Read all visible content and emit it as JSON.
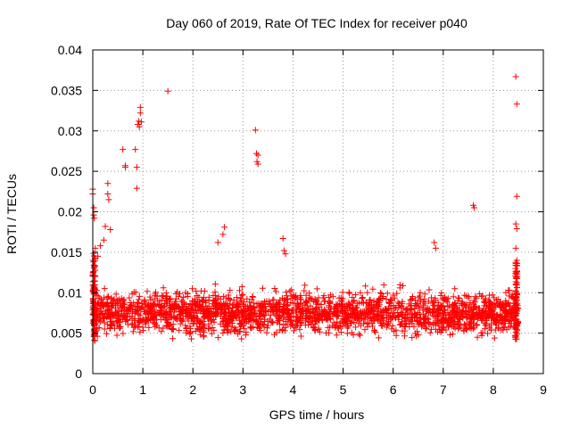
{
  "chart_data": {
    "type": "scatter",
    "title": "Day 060 of 2019, Rate Of TEC Index for receiver p040",
    "xlabel": "GPS time / hours",
    "ylabel": "ROTI / TECUs",
    "xlim": [
      0,
      9
    ],
    "ylim": [
      0,
      0.04
    ],
    "grid": true,
    "marker": "+",
    "color": "#ff0000",
    "x_ticks": [
      0,
      1,
      2,
      3,
      4,
      5,
      6,
      7,
      8,
      9
    ],
    "x_tick_labels": [
      "0",
      "1",
      "2",
      "3",
      "4",
      "5",
      "6",
      "7",
      "8",
      "9"
    ],
    "y_ticks": [
      0,
      0.005,
      0.01,
      0.015,
      0.02,
      0.025,
      0.03,
      0.035,
      0.04
    ],
    "y_tick_labels": [
      "0",
      "0.005",
      "0.01",
      "0.015",
      "0.02",
      "0.025",
      "0.03",
      "0.035",
      "0.04"
    ],
    "x_range": [
      0,
      8.5
    ],
    "baseline_band": {
      "typical": 0.0075,
      "low": 0.003,
      "high": 0.0125
    },
    "notable_points": [
      {
        "x": 0.0,
        "y": 0.0228
      },
      {
        "x": 0.0,
        "y": 0.0222
      },
      {
        "x": 0.02,
        "y": 0.0205
      },
      {
        "x": 0.02,
        "y": 0.0196
      },
      {
        "x": 0.03,
        "y": 0.0192
      },
      {
        "x": 0.05,
        "y": 0.0155
      },
      {
        "x": 0.1,
        "y": 0.0145
      },
      {
        "x": 0.15,
        "y": 0.0158
      },
      {
        "x": 0.22,
        "y": 0.0165
      },
      {
        "x": 0.25,
        "y": 0.0182
      },
      {
        "x": 0.3,
        "y": 0.0235
      },
      {
        "x": 0.3,
        "y": 0.0222
      },
      {
        "x": 0.32,
        "y": 0.0215
      },
      {
        "x": 0.35,
        "y": 0.0178
      },
      {
        "x": 0.6,
        "y": 0.0277
      },
      {
        "x": 0.65,
        "y": 0.0257
      },
      {
        "x": 0.65,
        "y": 0.0255
      },
      {
        "x": 0.85,
        "y": 0.0277
      },
      {
        "x": 0.88,
        "y": 0.0255
      },
      {
        "x": 0.88,
        "y": 0.0229
      },
      {
        "x": 0.9,
        "y": 0.0308
      },
      {
        "x": 0.92,
        "y": 0.0312
      },
      {
        "x": 0.93,
        "y": 0.0305
      },
      {
        "x": 0.95,
        "y": 0.0322
      },
      {
        "x": 0.95,
        "y": 0.0329
      },
      {
        "x": 0.97,
        "y": 0.0311
      },
      {
        "x": 1.5,
        "y": 0.0349
      },
      {
        "x": 2.6,
        "y": 0.0172
      },
      {
        "x": 2.63,
        "y": 0.0181
      },
      {
        "x": 2.5,
        "y": 0.0162
      },
      {
        "x": 3.25,
        "y": 0.0301
      },
      {
        "x": 3.27,
        "y": 0.0272
      },
      {
        "x": 3.28,
        "y": 0.0262
      },
      {
        "x": 3.3,
        "y": 0.0259
      },
      {
        "x": 3.3,
        "y": 0.027
      },
      {
        "x": 3.8,
        "y": 0.0167
      },
      {
        "x": 3.82,
        "y": 0.0152
      },
      {
        "x": 3.85,
        "y": 0.0148
      },
      {
        "x": 6.82,
        "y": 0.0162
      },
      {
        "x": 6.85,
        "y": 0.0155
      },
      {
        "x": 7.6,
        "y": 0.0208
      },
      {
        "x": 7.62,
        "y": 0.0205
      },
      {
        "x": 8.45,
        "y": 0.0367
      },
      {
        "x": 8.47,
        "y": 0.0333
      },
      {
        "x": 8.47,
        "y": 0.0219
      },
      {
        "x": 8.45,
        "y": 0.0185
      },
      {
        "x": 8.47,
        "y": 0.0179
      },
      {
        "x": 8.45,
        "y": 0.0155
      },
      {
        "x": 8.47,
        "y": 0.014
      }
    ]
  }
}
